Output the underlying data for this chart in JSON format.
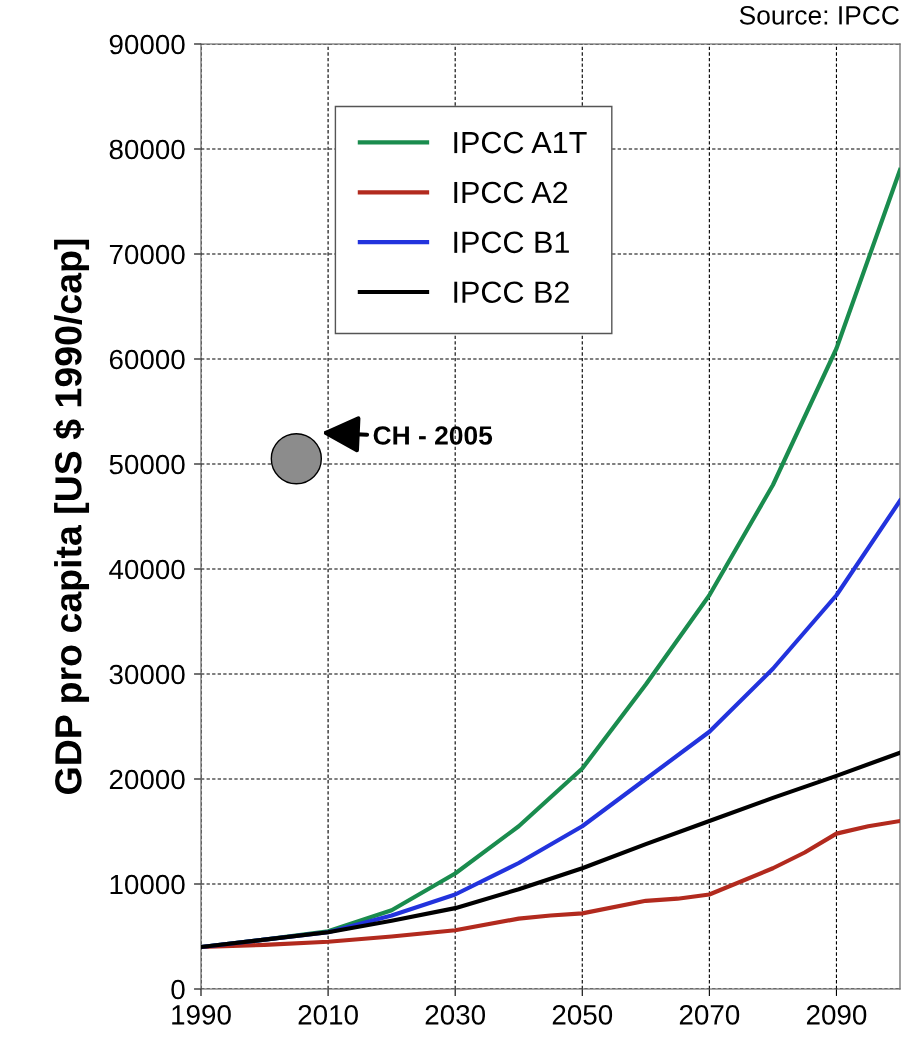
{
  "chart_data": {
    "type": "line",
    "ylabel": "GDP pro capita [US $ 1990/cap]",
    "annotations": [
      "Source: IPCC",
      {
        "text": "CH - 2005",
        "x": 2005,
        "y": 50500
      }
    ],
    "xlim": [
      1990,
      2100
    ],
    "xticks": [
      1990,
      2010,
      2030,
      2050,
      2070,
      2090
    ],
    "ylim": [
      0,
      90000
    ],
    "yticks": [
      0,
      10000,
      20000,
      30000,
      40000,
      50000,
      60000,
      70000,
      80000,
      90000
    ],
    "grid": true,
    "legend": "top",
    "line_style": "solid",
    "series": [
      {
        "name": "IPCC A1T",
        "color": "#1a8c4e",
        "x": [
          1990,
          2000,
          2010,
          2020,
          2030,
          2040,
          2050,
          2060,
          2070,
          2080,
          2090,
          2100
        ],
        "values": [
          4000,
          4700,
          5500,
          7500,
          11000,
          15500,
          21000,
          29000,
          37500,
          48000,
          61000,
          78000
        ]
      },
      {
        "name": "IPCC A2",
        "color": "#b22a1e",
        "x": [
          1990,
          2000,
          2010,
          2020,
          2030,
          2040,
          2045,
          2050,
          2060,
          2065,
          2070,
          2080,
          2085,
          2090,
          2095,
          2100
        ],
        "values": [
          4000,
          4200,
          4500,
          5000,
          5600,
          6700,
          7000,
          7200,
          8400,
          8600,
          9000,
          11500,
          13000,
          14800,
          15500,
          16000
        ]
      },
      {
        "name": "IPCC B1",
        "color": "#2233dd",
        "x": [
          1990,
          2000,
          2010,
          2020,
          2030,
          2040,
          2050,
          2060,
          2070,
          2080,
          2090,
          2100
        ],
        "values": [
          4000,
          4700,
          5400,
          7000,
          9000,
          12000,
          15500,
          20000,
          24500,
          30500,
          37500,
          46500
        ]
      },
      {
        "name": "IPCC B2",
        "color": "#000000",
        "x": [
          1990,
          2000,
          2010,
          2020,
          2030,
          2040,
          2050,
          2060,
          2070,
          2080,
          2090,
          2100
        ],
        "values": [
          4000,
          4700,
          5400,
          6500,
          7700,
          9500,
          11500,
          13800,
          16000,
          18200,
          20300,
          22500
        ]
      },
      {
        "type": "scatter",
        "color": "#8c8c8c",
        "x": [
          2005
        ],
        "values": [
          50500
        ]
      }
    ]
  }
}
